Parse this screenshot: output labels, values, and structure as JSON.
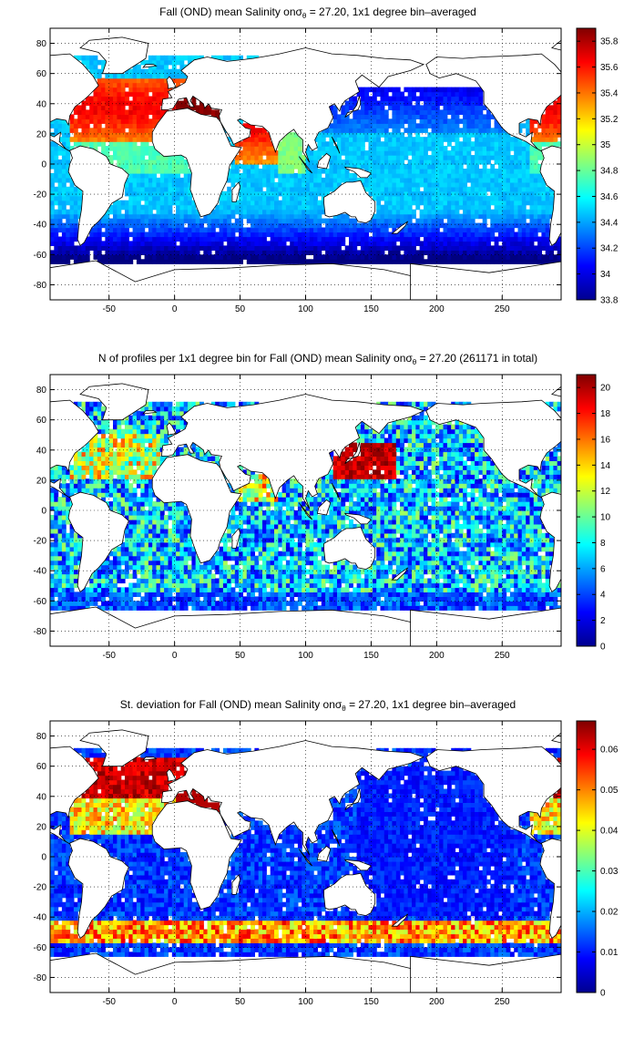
{
  "panels": [
    {
      "title": "Fall (OND) mean Salinity on",
      "title_sigma": "σ",
      "title_sub": "θ",
      "title_rest": " = 27.20, 1x1 degree bin–averaged",
      "colorbar": {
        "ticks": [
          "35.8",
          "35.6",
          "35.4",
          "35.2",
          "35",
          "34.8",
          "34.6",
          "34.4",
          "34.2",
          "34",
          "33.8"
        ],
        "range": [
          33.8,
          35.9
        ]
      },
      "field": "mean_salinity"
    },
    {
      "title": "N of profiles per 1x1 degree bin for Fall (OND) mean Salinity on",
      "title_sigma": "σ",
      "title_sub": "θ",
      "title_rest": " = 27.20 (261171 in total)",
      "colorbar": {
        "ticks": [
          "20",
          "18",
          "16",
          "14",
          "12",
          "10",
          "8",
          "6",
          "4",
          "2",
          "0"
        ],
        "range": [
          0,
          21
        ]
      },
      "field": "profile_count"
    },
    {
      "title": "St. deviation for Fall (OND) mean Salinity on",
      "title_sigma": "σ",
      "title_sub": "θ",
      "title_rest": " = 27.20, 1x1 degree bin–averaged",
      "colorbar": {
        "ticks": [
          "0.06",
          "0.05",
          "0.04",
          "0.03",
          "0.02",
          "0.01",
          "0"
        ],
        "range": [
          0,
          0.067
        ]
      },
      "field": "std_salinity"
    }
  ],
  "x_ticks": [
    "-50",
    "0",
    "50",
    "100",
    "150",
    "200",
    "250"
  ],
  "x_tick_values": [
    -50,
    0,
    50,
    100,
    150,
    200,
    250
  ],
  "y_ticks": [
    "80",
    "60",
    "40",
    "20",
    "0",
    "-20",
    "-40",
    "-60",
    "-80"
  ],
  "y_tick_values": [
    80,
    60,
    40,
    20,
    0,
    -20,
    -40,
    -60,
    -80
  ],
  "xlim": [
    -95,
    295
  ],
  "ylim": [
    -90,
    90
  ],
  "colormap": "jet",
  "grid": "dotted"
}
